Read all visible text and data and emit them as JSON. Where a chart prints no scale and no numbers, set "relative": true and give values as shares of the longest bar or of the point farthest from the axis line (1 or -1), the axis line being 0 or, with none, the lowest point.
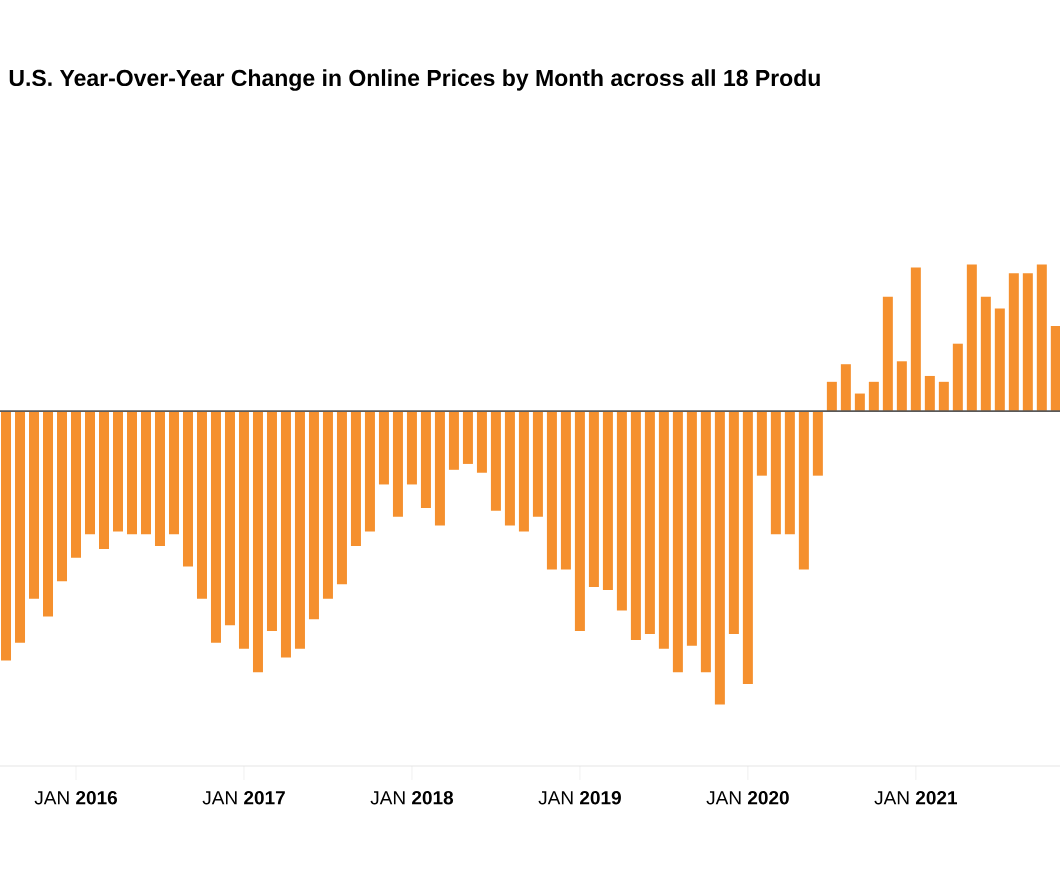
{
  "chart_data": {
    "type": "bar",
    "title": "U.S. Year-Over-Year Change in Online Prices by Month across all 18 Produ",
    "categories": [
      null,
      null,
      null,
      null,
      null,
      "JAN **2016**",
      null,
      null,
      null,
      null,
      null,
      null,
      null,
      null,
      null,
      null,
      null,
      "JAN **2017**",
      null,
      null,
      null,
      null,
      null,
      null,
      null,
      null,
      null,
      null,
      null,
      "JAN **2018**",
      null,
      null,
      null,
      null,
      null,
      null,
      null,
      null,
      null,
      null,
      null,
      "JAN **2019**",
      null,
      null,
      null,
      null,
      null,
      null,
      null,
      null,
      null,
      null,
      null,
      "JAN **2020**",
      null,
      null,
      null,
      null,
      null,
      null,
      null,
      null,
      null,
      null,
      null,
      "JAN **2021**",
      null,
      null,
      null,
      null,
      null,
      null,
      null,
      null,
      null,
      null
    ],
    "values": [
      -0.85,
      -0.79,
      -0.64,
      -0.7,
      -0.58,
      -0.5,
      -0.42,
      -0.47,
      -0.41,
      -0.42,
      -0.42,
      -0.46,
      -0.42,
      -0.53,
      -0.64,
      -0.79,
      -0.73,
      -0.81,
      -0.89,
      -0.75,
      -0.84,
      -0.81,
      -0.71,
      -0.64,
      -0.59,
      -0.46,
      -0.41,
      -0.25,
      -0.36,
      -0.25,
      -0.33,
      -0.39,
      -0.2,
      -0.18,
      -0.21,
      -0.34,
      -0.39,
      -0.41,
      -0.36,
      -0.54,
      -0.54,
      -0.75,
      -0.6,
      -0.61,
      -0.68,
      -0.78,
      -0.76,
      -0.81,
      -0.89,
      -0.8,
      -0.89,
      -1,
      -0.76,
      -0.93,
      -0.22,
      -0.42,
      -0.42,
      -0.54,
      -0.22,
      0.1,
      0.16,
      0.06,
      0.1,
      0.39,
      0.17,
      0.49,
      0.12,
      0.1,
      0.23,
      0.5,
      0.39,
      0.35,
      0.47,
      0.47,
      0.5,
      0.29
    ],
    "color": "#f5902e",
    "relative": true
  }
}
